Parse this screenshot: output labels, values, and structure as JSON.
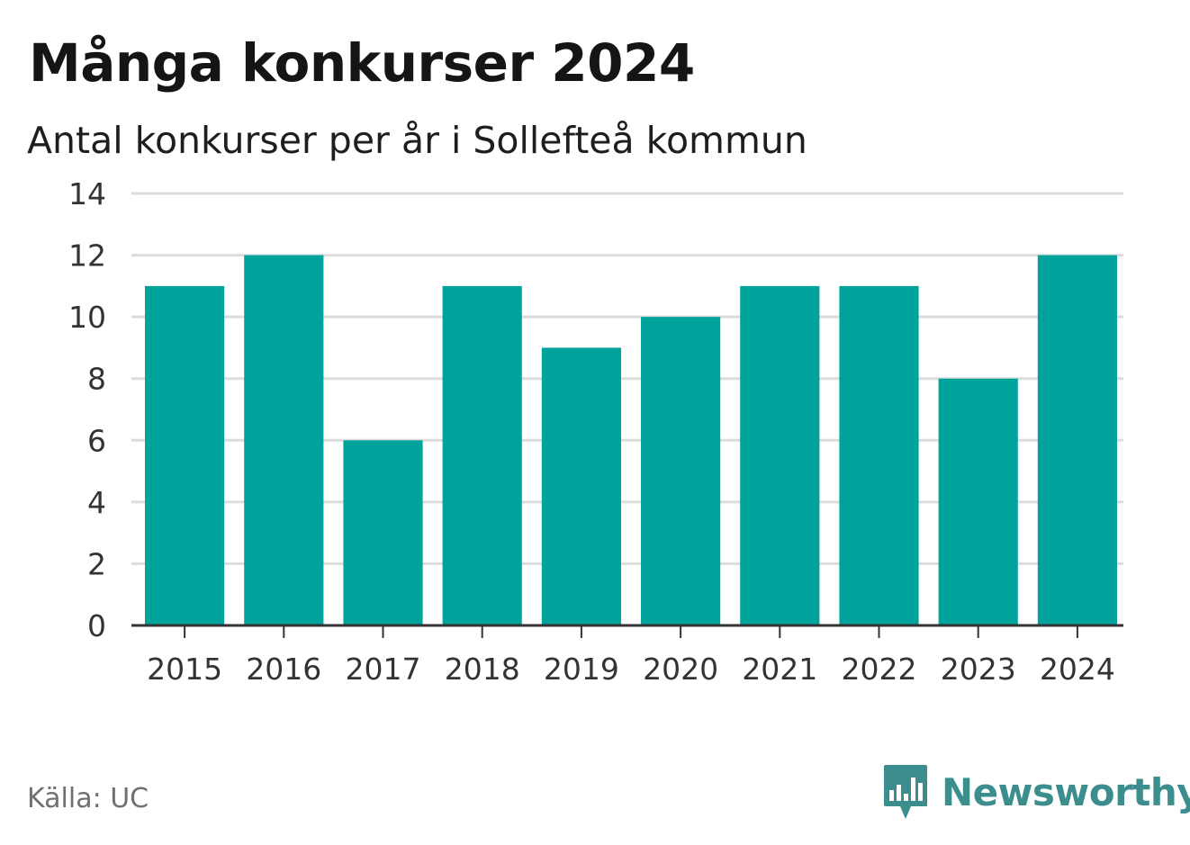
{
  "header": {
    "title": "Många konkurser 2024",
    "subtitle": "Antal konkurser per år i Sollefteå kommun"
  },
  "footer": {
    "source": "Källa: UC",
    "brand_name": "Newsworthy",
    "brand_logo_icon": "newsworthy-bar-chart-icon",
    "brand_color": "#3c8d8e"
  },
  "chart_data": {
    "type": "bar",
    "title": "Många konkurser 2024",
    "subtitle": "Antal konkurser per år i Sollefteå kommun",
    "xlabel": "",
    "ylabel": "",
    "categories": [
      "2015",
      "2016",
      "2017",
      "2018",
      "2019",
      "2020",
      "2021",
      "2022",
      "2023",
      "2024"
    ],
    "values": [
      11,
      12,
      6,
      11,
      9,
      10,
      11,
      11,
      8,
      12
    ],
    "ylim": [
      0,
      14
    ],
    "yticks": [
      0,
      2,
      4,
      6,
      8,
      10,
      12,
      14
    ],
    "grid": true,
    "legend": "none",
    "bar_color": "#00a39b",
    "grid_color": "#dcdcdc",
    "axis_color": "#333333"
  }
}
